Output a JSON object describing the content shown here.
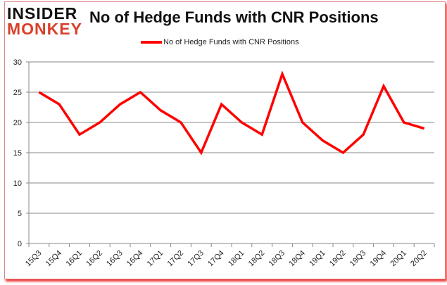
{
  "logo": {
    "line1": "INSIDER",
    "line2": "MONKEY"
  },
  "chart_data": {
    "type": "line",
    "title": "No of Hedge Funds with CNR Positions",
    "categories": [
      "15Q3",
      "15Q4",
      "16Q1",
      "16Q2",
      "16Q3",
      "16Q4",
      "17Q1",
      "17Q2",
      "17Q3",
      "17Q4",
      "18Q1",
      "18Q2",
      "18Q3",
      "18Q4",
      "19Q1",
      "19Q2",
      "19Q3",
      "19Q4",
      "20Q1",
      "20Q2"
    ],
    "series": [
      {
        "name": "No of Hedge Funds with CNR Positions",
        "color": "#ff0000",
        "values": [
          25,
          23,
          18,
          20,
          23,
          25,
          22,
          20,
          15,
          23,
          20,
          18,
          28,
          20,
          17,
          15,
          18,
          26,
          20,
          19
        ]
      }
    ],
    "ylim": [
      0,
      30
    ],
    "yticks": [
      0,
      5,
      10,
      15,
      20,
      25,
      30
    ],
    "grid": true,
    "legend": "top"
  }
}
